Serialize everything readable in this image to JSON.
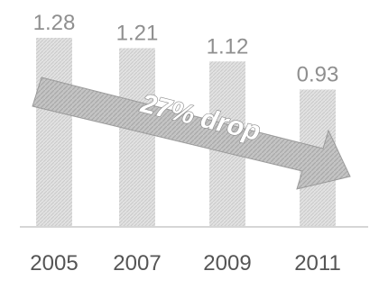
{
  "chart_data": {
    "type": "bar",
    "categories": [
      "2005",
      "2007",
      "2009",
      "2011"
    ],
    "values": [
      1.28,
      1.21,
      1.12,
      0.93
    ],
    "value_labels": [
      "1.28",
      "1.21",
      "1.12",
      "0.93"
    ],
    "title": "",
    "xlabel": "",
    "ylabel": "",
    "ylim": [
      0,
      1.28
    ],
    "grid": false,
    "legend": "none",
    "annotation": {
      "text": "27% drop",
      "from": "2005",
      "to": "2011"
    },
    "colors": {
      "bar": "#e2e2e2",
      "bar_texture": "#c9c9c9",
      "arrow": "#bdbdbd",
      "value_text": "#8f8f8f",
      "tick_text": "#555555"
    }
  }
}
